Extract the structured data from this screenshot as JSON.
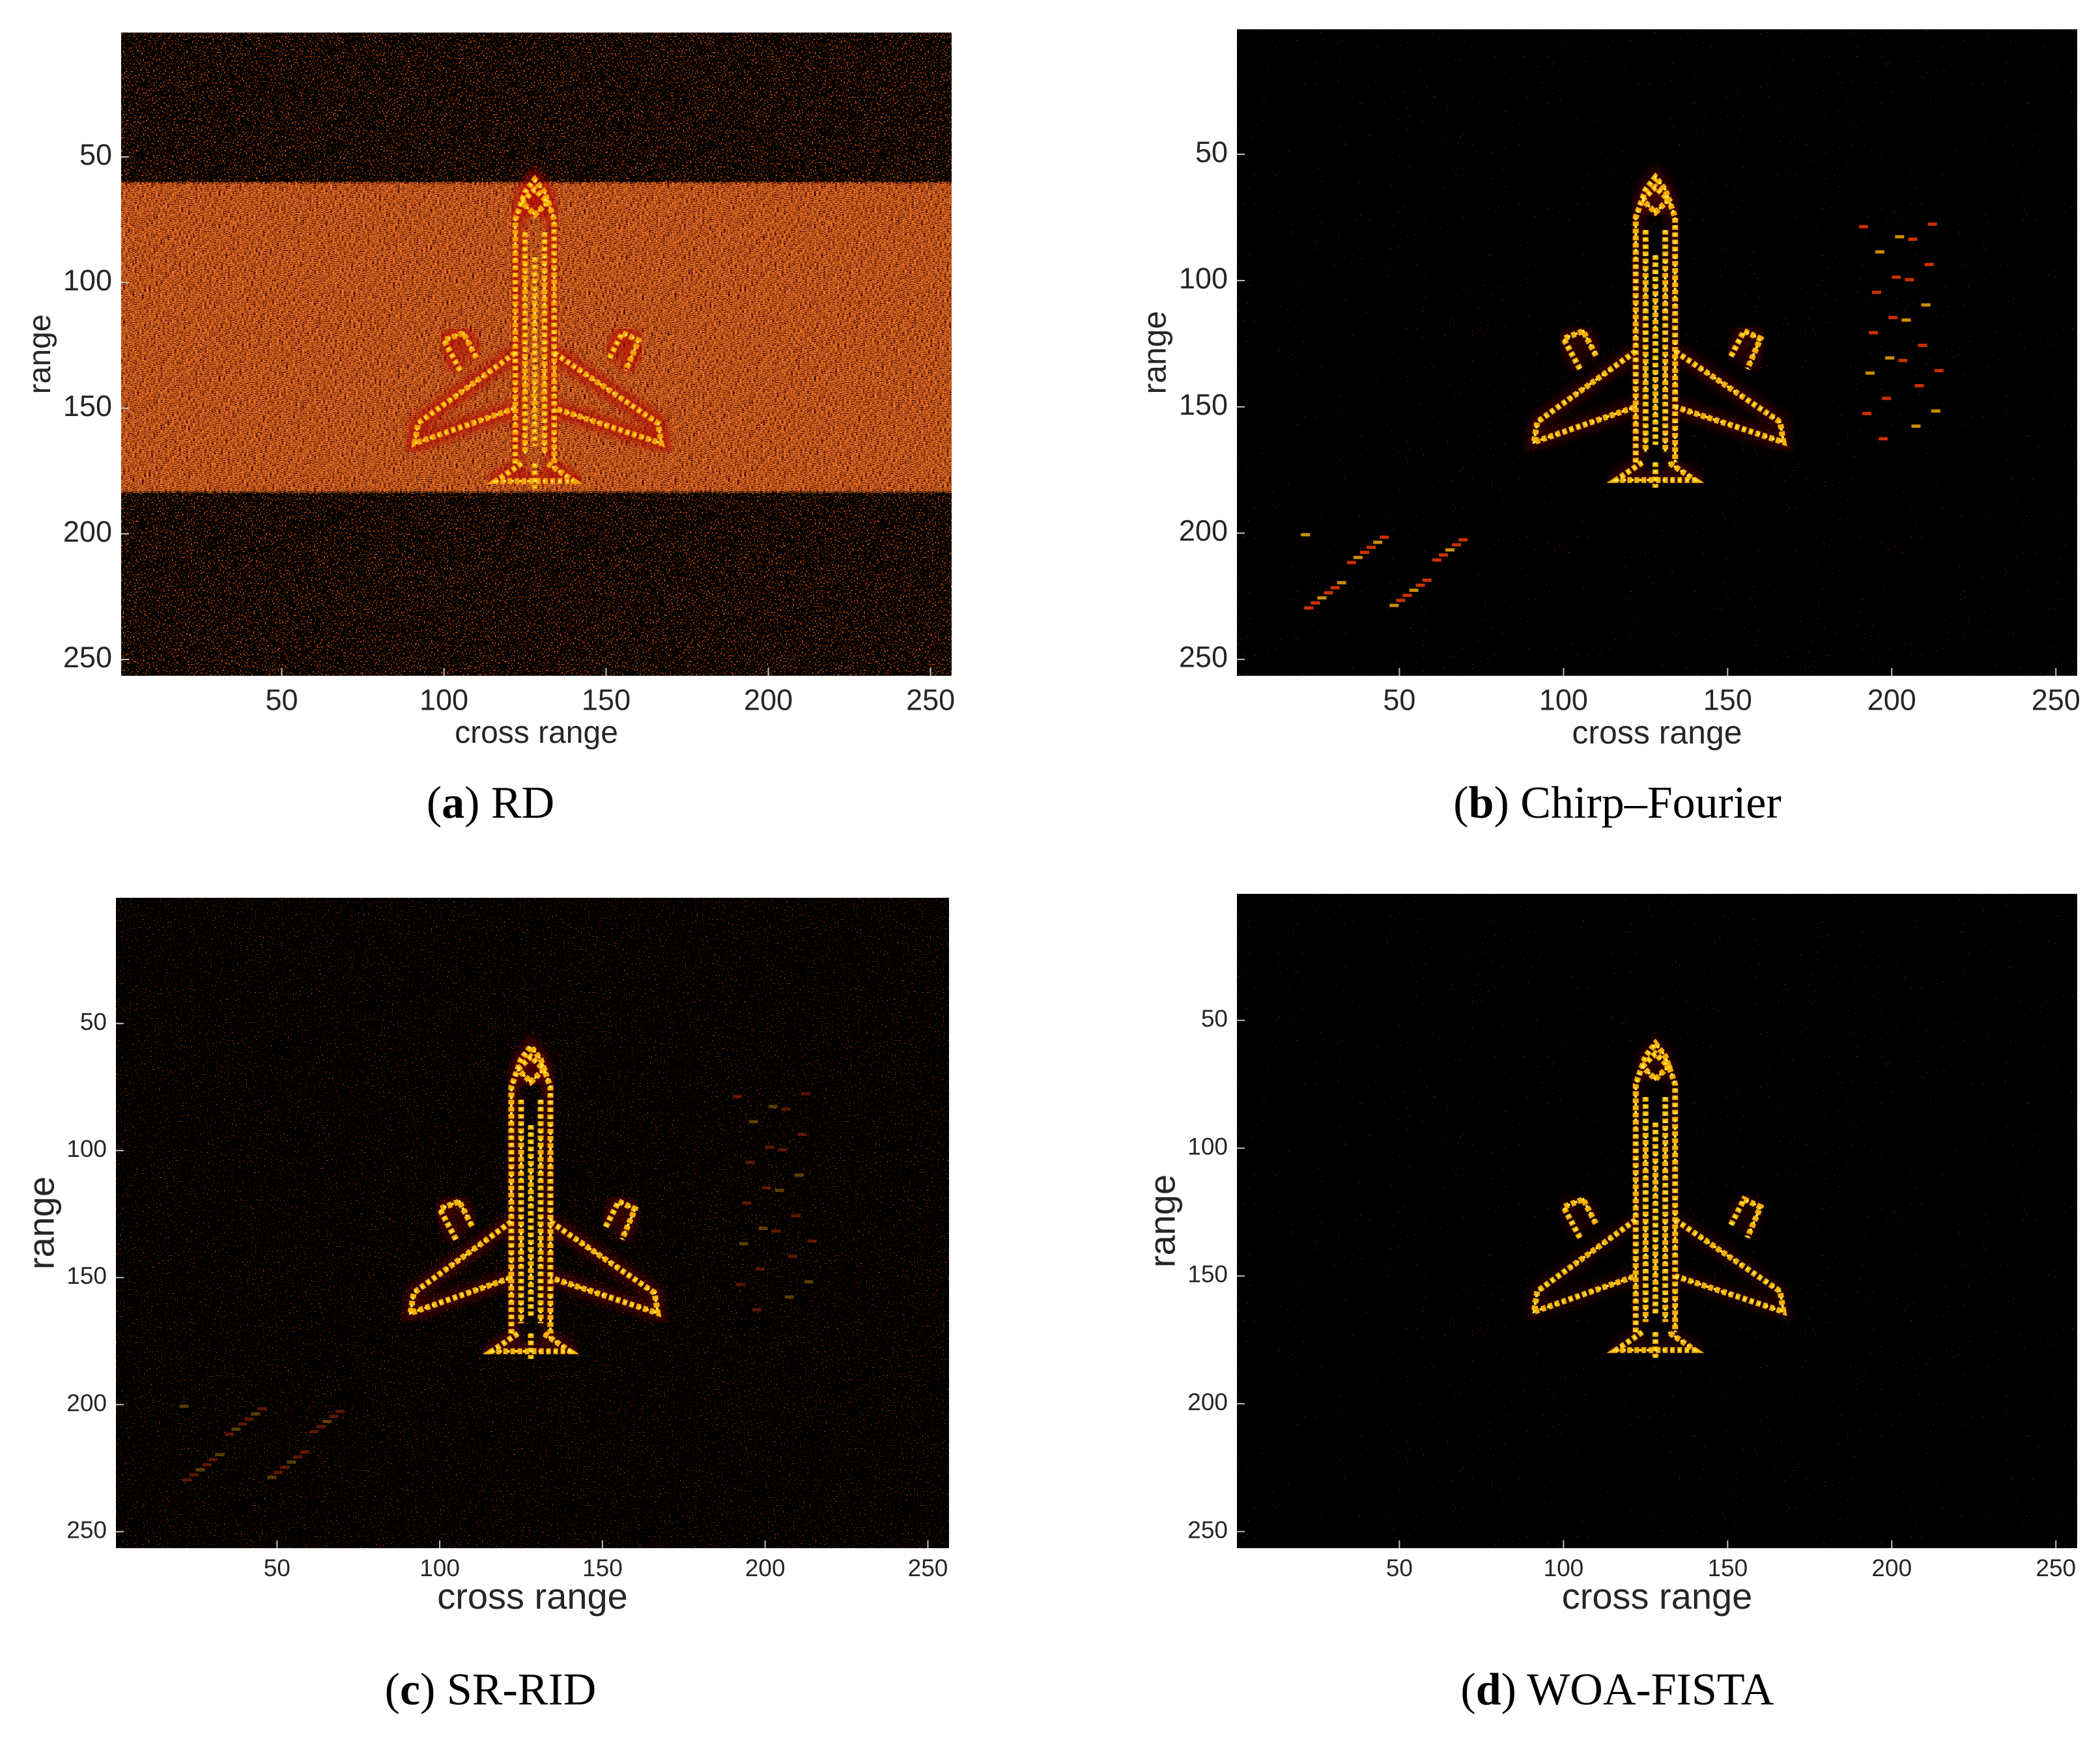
{
  "chart_data": [
    {
      "type": "heatmap",
      "caption": [
        "(",
        "a",
        ") RD"
      ],
      "colormap": "hot",
      "xlabel": "cross range",
      "ylabel": "range",
      "xlim": [
        0.5,
        256.5
      ],
      "ylim": [
        256.5,
        0.5
      ],
      "xticks": [
        50,
        100,
        150,
        200,
        250
      ],
      "yticks": [
        50,
        100,
        150,
        200,
        250
      ]
    },
    {
      "type": "heatmap",
      "caption": [
        "(",
        "b",
        ") Chirp–Fourier"
      ],
      "colormap": "hot",
      "xlabel": "cross range",
      "ylabel": "range",
      "xlim": [
        0.5,
        256.5
      ],
      "ylim": [
        256.5,
        0.5
      ],
      "xticks": [
        50,
        100,
        150,
        200,
        250
      ],
      "yticks": [
        50,
        100,
        150,
        200,
        250
      ]
    },
    {
      "type": "heatmap",
      "caption": [
        "(",
        "c",
        ") SR-RID"
      ],
      "colormap": "hot",
      "xlabel": "cross range",
      "ylabel": "range",
      "xlim": [
        0.5,
        256.5
      ],
      "ylim": [
        256.5,
        0.5
      ],
      "xticks": [
        50,
        100,
        150,
        200,
        250
      ],
      "yticks": [
        50,
        100,
        150,
        200,
        250
      ]
    },
    {
      "type": "heatmap",
      "caption": [
        "(",
        "d",
        ") WOA-FISTA"
      ],
      "colormap": "hot",
      "xlabel": "cross range",
      "ylabel": "range",
      "xlim": [
        0.5,
        256.5
      ],
      "ylim": [
        256.5,
        0.5
      ],
      "xticks": [
        50,
        100,
        150,
        200,
        250
      ],
      "yticks": [
        50,
        100,
        150,
        200,
        250
      ]
    }
  ]
}
